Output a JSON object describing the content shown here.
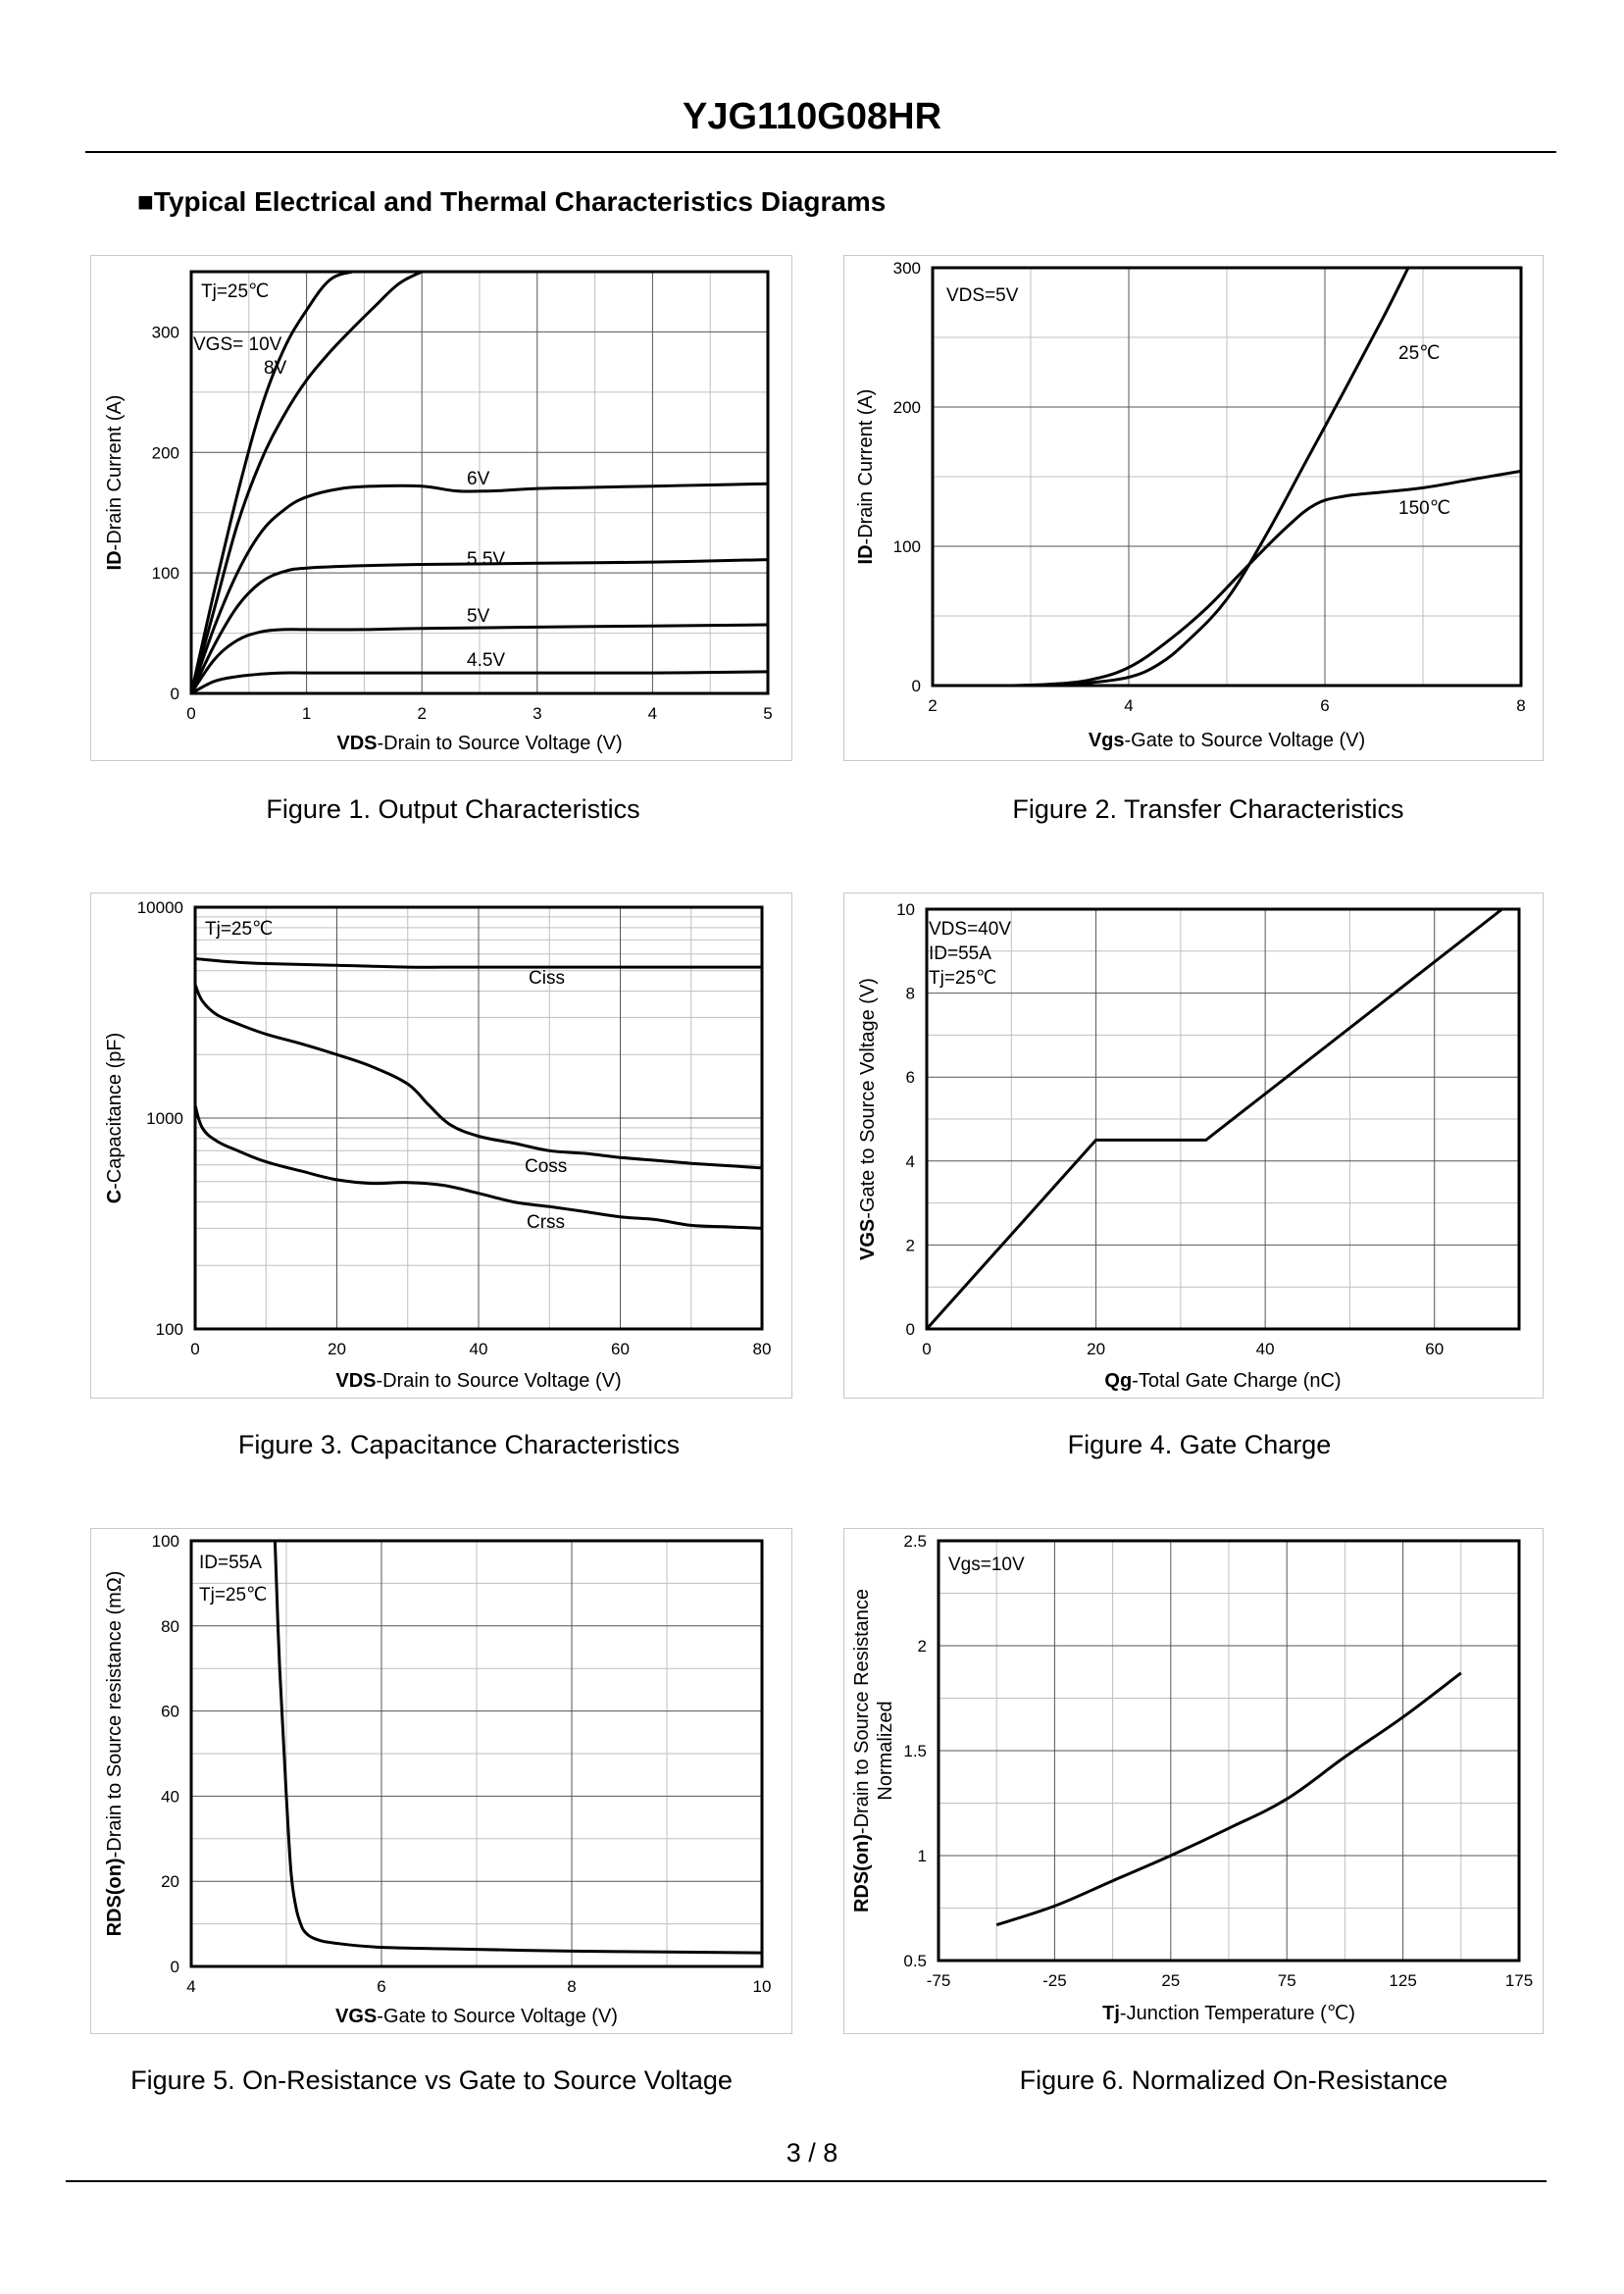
{
  "header": {
    "title": "YJG110G08HR",
    "section_heading": "■Typical Electrical and Thermal Characteristics Diagrams"
  },
  "footer": {
    "page": "3 / 8"
  },
  "figures": [
    {
      "caption": "Figure 1.  Output Characteristics"
    },
    {
      "caption": "Figure 2.  Transfer Characteristics"
    },
    {
      "caption": "Figure 3.  Capacitance Characteristics"
    },
    {
      "caption": "Figure 4.  Gate Charge"
    },
    {
      "caption": "Figure 5.  On-Resistance vs Gate to Source Voltage"
    },
    {
      "caption": "Figure 6.  Normalized On-Resistance"
    }
  ],
  "chart_data": [
    {
      "type": "line",
      "title": "Figure 1.  Output Characteristics",
      "xlabel_bold": "VDS",
      "xlabel_rest": "-Drain to Source Voltage (V)",
      "ylabel_bold": "ID",
      "ylabel_rest": "-Drain Current (A)",
      "xlim": [
        0,
        5
      ],
      "ylim": [
        0,
        350
      ],
      "xticks": [
        0,
        1,
        2,
        3,
        4,
        5
      ],
      "yticks": [
        0,
        100,
        200,
        300
      ],
      "annotations": [
        "Tj=25℃",
        "VGS= 10V",
        "8V"
      ],
      "series": [
        {
          "name": "VGS= 10V",
          "x": [
            0,
            0.2,
            0.4,
            0.6,
            0.8,
            1.0,
            1.2,
            1.4
          ],
          "y": [
            0,
            85,
            165,
            235,
            285,
            318,
            343,
            350
          ]
        },
        {
          "name": "8V",
          "x": [
            0,
            0.2,
            0.4,
            0.6,
            0.8,
            1.0,
            1.2,
            1.4,
            1.6,
            1.8,
            2.0
          ],
          "y": [
            0,
            70,
            140,
            192,
            230,
            260,
            283,
            303,
            322,
            340,
            350
          ]
        },
        {
          "name": "6V",
          "x": [
            0,
            0.2,
            0.4,
            0.6,
            0.8,
            1.0,
            1.3,
            1.6,
            2.0,
            2.3,
            2.6,
            3.0,
            3.5,
            4.0,
            4.5,
            5.0
          ],
          "y": [
            0,
            55,
            100,
            133,
            152,
            163,
            170,
            172,
            172,
            168,
            168,
            170,
            171,
            172,
            173,
            174
          ]
        },
        {
          "name": "5.5V",
          "x": [
            0,
            0.2,
            0.4,
            0.6,
            0.8,
            1.0,
            1.5,
            2.0,
            3.0,
            4.0,
            5.0
          ],
          "y": [
            0,
            40,
            72,
            92,
            101,
            104,
            106,
            107,
            108,
            109,
            111
          ]
        },
        {
          "name": "5V",
          "x": [
            0,
            0.2,
            0.4,
            0.6,
            0.8,
            1.0,
            1.5,
            2.0,
            3.0,
            4.0,
            5.0
          ],
          "y": [
            0,
            28,
            44,
            51,
            53,
            53,
            53,
            54,
            55,
            56,
            57
          ]
        },
        {
          "name": "4.5V",
          "x": [
            0,
            0.2,
            0.4,
            0.6,
            0.8,
            1.0,
            1.5,
            2.0,
            3.0,
            4.0,
            5.0
          ],
          "y": [
            0,
            10,
            14,
            16,
            17,
            17,
            17,
            17,
            17,
            17,
            18
          ]
        }
      ]
    },
    {
      "type": "line",
      "title": "Figure 2.  Transfer Characteristics",
      "xlabel_bold": "Vgs",
      "xlabel_rest": "-Gate to Source Voltage (V)",
      "ylabel_bold": "ID",
      "ylabel_rest": "-Drain Current (A)",
      "xlim": [
        2,
        8
      ],
      "ylim": [
        0,
        300
      ],
      "xticks": [
        2,
        4,
        6,
        8
      ],
      "yticks": [
        0,
        100,
        200,
        300
      ],
      "annotations": [
        "VDS=5V"
      ],
      "series": [
        {
          "name": "25℃",
          "x": [
            3.2,
            3.6,
            4.0,
            4.3,
            4.6,
            5.0,
            5.4,
            5.8,
            6.2,
            6.6,
            6.85
          ],
          "y": [
            0,
            2,
            6,
            15,
            32,
            62,
            108,
            160,
            212,
            265,
            300
          ]
        },
        {
          "name": "150℃",
          "x": [
            2.8,
            3.2,
            3.6,
            4.0,
            4.4,
            4.8,
            5.2,
            5.6,
            5.9,
            6.2,
            6.6,
            7.0,
            7.5,
            8.0
          ],
          "y": [
            0,
            1,
            4,
            13,
            32,
            56,
            85,
            113,
            130,
            136,
            139,
            142,
            148,
            154
          ]
        }
      ]
    },
    {
      "type": "line",
      "title": "Figure 3.  Capacitance Characteristics",
      "xlabel_bold": "VDS",
      "xlabel_rest": "-Drain to Source Voltage (V)",
      "ylabel_bold": "C",
      "ylabel_rest": "-Capacitance (pF)",
      "xlim": [
        0,
        80
      ],
      "ylim": [
        100,
        10000
      ],
      "yscale": "log",
      "xticks": [
        0,
        20,
        40,
        60,
        80
      ],
      "yticks": [
        100,
        1000,
        10000
      ],
      "annotations": [
        "Tj=25℃"
      ],
      "series": [
        {
          "name": "Ciss",
          "x": [
            0,
            5,
            10,
            20,
            30,
            40,
            60,
            80
          ],
          "y": [
            5700,
            5500,
            5400,
            5300,
            5200,
            5200,
            5200,
            5200
          ]
        },
        {
          "name": "Coss",
          "x": [
            0,
            1,
            3,
            6,
            10,
            15,
            20,
            25,
            30,
            33,
            36,
            40,
            45,
            50,
            55,
            60,
            65,
            70,
            75,
            80
          ],
          "y": [
            4300,
            3600,
            3100,
            2800,
            2500,
            2250,
            2000,
            1750,
            1450,
            1150,
            930,
            820,
            760,
            700,
            680,
            650,
            630,
            610,
            595,
            580
          ]
        },
        {
          "name": "Crss",
          "x": [
            0,
            1,
            3,
            6,
            10,
            15,
            20,
            25,
            30,
            35,
            40,
            45,
            50,
            55,
            60,
            65,
            70,
            75,
            80
          ],
          "y": [
            1150,
            900,
            780,
            700,
            620,
            560,
            510,
            490,
            495,
            480,
            440,
            400,
            380,
            360,
            340,
            330,
            310,
            305,
            300
          ]
        }
      ]
    },
    {
      "type": "line",
      "title": "Figure 4.  Gate Charge",
      "xlabel_bold": "Qg",
      "xlabel_rest": "-Total Gate Charge (nC)",
      "ylabel_bold": "VGS",
      "ylabel_rest": "-Gate to Source Voltage (V)",
      "xlim": [
        0,
        70
      ],
      "ylim": [
        0,
        10
      ],
      "xticks": [
        0,
        20,
        40,
        60
      ],
      "yticks": [
        0,
        2,
        4,
        6,
        8,
        10
      ],
      "annotations": [
        "VDS=40V",
        "ID=55A",
        "Tj=25℃"
      ],
      "series": [
        {
          "name": "VGS",
          "x": [
            0,
            20,
            33,
            68
          ],
          "y": [
            0,
            4.5,
            4.5,
            10
          ]
        }
      ]
    },
    {
      "type": "line",
      "title": "Figure 5.  On-Resistance vs Gate to Source Voltage",
      "xlabel_bold": "VGS",
      "xlabel_rest": "-Gate to Source Voltage (V)",
      "ylabel_bold": "RDS(on)",
      "ylabel_rest": "-Drain to Source resistance (mΩ)",
      "xlim": [
        4,
        10
      ],
      "ylim": [
        0,
        100
      ],
      "xticks": [
        4,
        6,
        8,
        10
      ],
      "yticks": [
        0,
        20,
        40,
        60,
        80,
        100
      ],
      "annotations": [
        "ID=55A",
        "Tj=25℃"
      ],
      "series": [
        {
          "name": "RDS(on)",
          "x": [
            4.88,
            4.93,
            5.0,
            5.05,
            5.1,
            5.15,
            5.2,
            5.3,
            5.5,
            6.0,
            7.0,
            8.0,
            9.0,
            10.0
          ],
          "y": [
            100,
            70,
            40,
            22,
            14,
            10,
            8,
            6.5,
            5.5,
            4.5,
            4.0,
            3.6,
            3.4,
            3.2
          ]
        }
      ]
    },
    {
      "type": "line",
      "title": "Figure 6.  Normalized On-Resistance",
      "xlabel_bold": "Tj",
      "xlabel_rest": "-Junction  Temperature (℃)",
      "ylabel_bold": "RDS(on)",
      "ylabel_rest": "-Drain to Source Resistance",
      "ylabel_line2": "Normalized",
      "xlim": [
        -75,
        175
      ],
      "ylim": [
        0.5,
        2.5
      ],
      "xticks": [
        -75,
        -25,
        25,
        75,
        125,
        175
      ],
      "yticks": [
        0.5,
        1,
        1.5,
        2,
        2.5
      ],
      "annotations": [
        "Vgs=10V"
      ],
      "series": [
        {
          "name": "Normalized RDS(on)",
          "x": [
            -50,
            -25,
            0,
            25,
            50,
            75,
            100,
            125,
            150
          ],
          "y": [
            0.67,
            0.76,
            0.88,
            1.0,
            1.13,
            1.27,
            1.47,
            1.66,
            1.87
          ]
        }
      ]
    }
  ]
}
